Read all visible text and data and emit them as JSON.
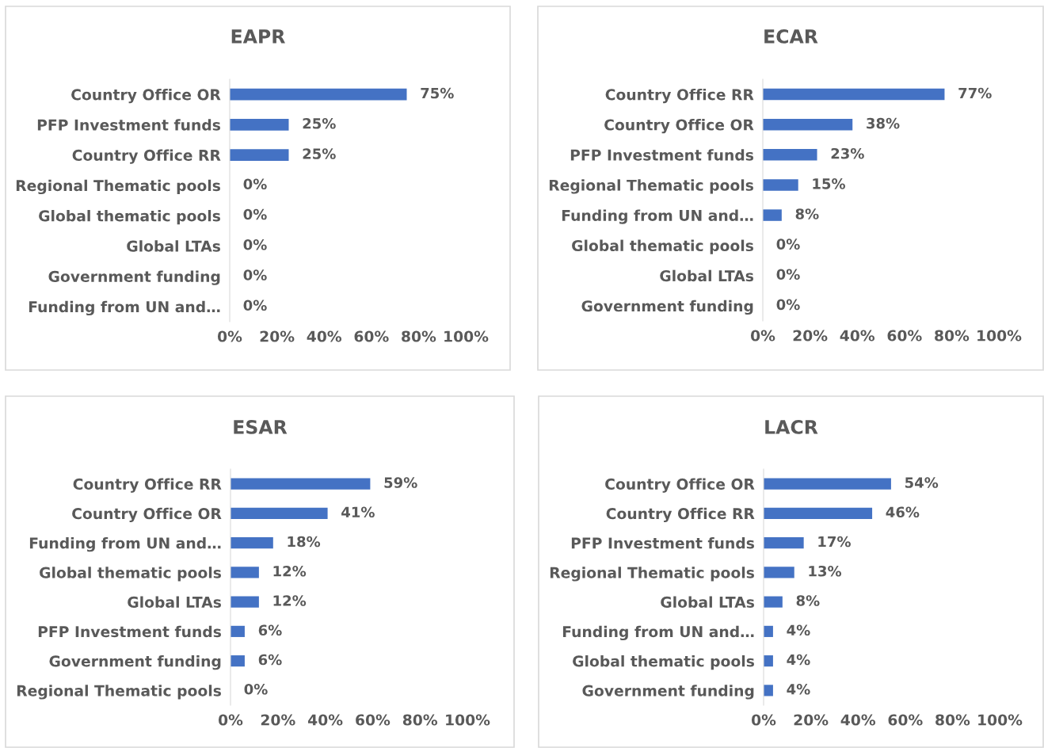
{
  "chart_data": [
    {
      "type": "bar",
      "orientation": "horizontal",
      "title": "EAPR",
      "color": "#4472c4",
      "xlim": [
        0,
        100
      ],
      "xticks": [
        {
          "value": 0,
          "label": "0%"
        },
        {
          "value": 20,
          "label": "20%"
        },
        {
          "value": 40,
          "label": "40%"
        },
        {
          "value": 60,
          "label": "60%"
        },
        {
          "value": 80,
          "label": "80%"
        },
        {
          "value": 100,
          "label": "100%"
        }
      ],
      "categories": [
        "Country Office OR",
        "PFP Investment funds",
        "Country Office RR",
        "Regional Thematic pools",
        "Global thematic pools",
        "Global LTAs",
        "Government funding",
        "Funding from UN and…"
      ],
      "values": [
        75,
        25,
        25,
        0,
        0,
        0,
        0,
        0
      ],
      "value_labels": [
        "75%",
        "25%",
        "25%",
        "0%",
        "0%",
        "0%",
        "0%",
        "0%"
      ]
    },
    {
      "type": "bar",
      "orientation": "horizontal",
      "title": "ECAR",
      "color": "#4472c4",
      "xlim": [
        0,
        100
      ],
      "xticks": [
        {
          "value": 0,
          "label": "0%"
        },
        {
          "value": 20,
          "label": "20%"
        },
        {
          "value": 40,
          "label": "40%"
        },
        {
          "value": 60,
          "label": "60%"
        },
        {
          "value": 80,
          "label": "80%"
        },
        {
          "value": 100,
          "label": "100%"
        }
      ],
      "categories": [
        "Country Office RR",
        "Country Office OR",
        "PFP Investment funds",
        "Regional Thematic pools",
        "Funding from UN and…",
        "Global thematic pools",
        "Global LTAs",
        "Government funding"
      ],
      "values": [
        77,
        38,
        23,
        15,
        8,
        0,
        0,
        0
      ],
      "value_labels": [
        "77%",
        "38%",
        "23%",
        "15%",
        "8%",
        "0%",
        "0%",
        "0%"
      ]
    },
    {
      "type": "bar",
      "orientation": "horizontal",
      "title": "ESAR",
      "color": "#4472c4",
      "xlim": [
        0,
        100
      ],
      "xticks": [
        {
          "value": 0,
          "label": "0%"
        },
        {
          "value": 20,
          "label": "20%"
        },
        {
          "value": 40,
          "label": "40%"
        },
        {
          "value": 60,
          "label": "60%"
        },
        {
          "value": 80,
          "label": "80%"
        },
        {
          "value": 100,
          "label": "100%"
        }
      ],
      "categories": [
        "Country Office RR",
        "Country Office OR",
        "Funding from UN and…",
        "Global thematic pools",
        "Global LTAs",
        "PFP Investment funds",
        "Government funding",
        "Regional Thematic pools"
      ],
      "values": [
        59,
        41,
        18,
        12,
        12,
        6,
        6,
        0
      ],
      "value_labels": [
        "59%",
        "41%",
        "18%",
        "12%",
        "12%",
        "6%",
        "6%",
        "0%"
      ]
    },
    {
      "type": "bar",
      "orientation": "horizontal",
      "title": "LACR",
      "color": "#4472c4",
      "xlim": [
        0,
        100
      ],
      "xticks": [
        {
          "value": 0,
          "label": "0%"
        },
        {
          "value": 20,
          "label": "20%"
        },
        {
          "value": 40,
          "label": "40%"
        },
        {
          "value": 60,
          "label": "60%"
        },
        {
          "value": 80,
          "label": "80%"
        },
        {
          "value": 100,
          "label": "100%"
        }
      ],
      "categories": [
        "Country Office OR",
        "Country Office RR",
        "PFP Investment funds",
        "Regional Thematic pools",
        "Global LTAs",
        "Funding from UN and…",
        "Global thematic pools",
        "Government funding"
      ],
      "values": [
        54,
        46,
        17,
        13,
        8,
        4,
        4,
        4
      ],
      "value_labels": [
        "54%",
        "46%",
        "17%",
        "13%",
        "8%",
        "4%",
        "4%",
        "4%"
      ]
    }
  ]
}
